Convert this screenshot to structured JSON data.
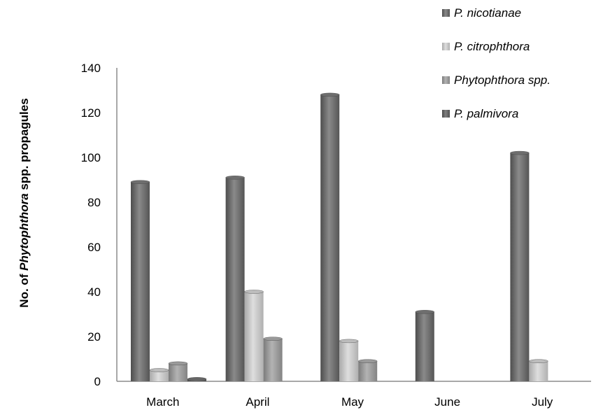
{
  "chart_data": {
    "type": "bar",
    "categories": [
      "March",
      "April",
      "May",
      "June",
      "July"
    ],
    "series": [
      {
        "name": "P. nicotianae",
        "values": [
          89,
          91,
          128,
          31,
          102
        ],
        "color": "#6e6e6e"
      },
      {
        "name": "P. citrophthora",
        "values": [
          5,
          40,
          18,
          0,
          9
        ],
        "color": "#bdbdbd"
      },
      {
        "name": "Phytophthora spp.",
        "values": [
          8,
          19,
          9,
          0,
          0
        ],
        "color": "#9a9a9a"
      },
      {
        "name": "P. palmivora",
        "values": [
          1,
          0,
          0,
          0,
          0
        ],
        "color": "#666666"
      }
    ],
    "yticks": [
      0,
      20,
      40,
      60,
      80,
      100,
      120,
      140
    ],
    "ylim": [
      0,
      140
    ],
    "ylabel_prefix": "No. of ",
    "ylabel_italic": "Phytophthora",
    "ylabel_suffix": " spp. propagules",
    "legend_position": "top-right",
    "grid": false
  }
}
